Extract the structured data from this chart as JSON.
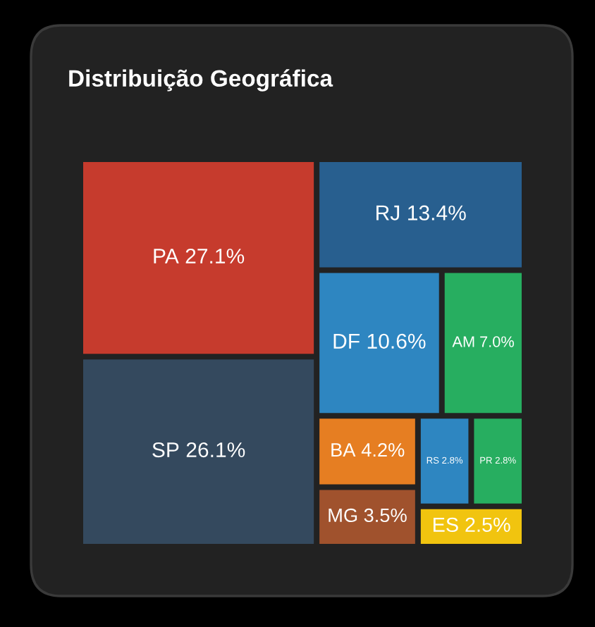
{
  "chart_data": {
    "type": "other",
    "title": "Distribuição Geográfica",
    "categories": [
      "PA",
      "SP",
      "RJ",
      "DF",
      "AM",
      "BA",
      "MG",
      "RS",
      "PR",
      "ES"
    ],
    "values": [
      27.1,
      26.1,
      13.4,
      10.6,
      7.0,
      4.2,
      3.5,
      2.8,
      2.8,
      2.5
    ],
    "value_labels": [
      "27.1%",
      "26.1%",
      "13.4%",
      "10.6%",
      "7.0%",
      "4.2%",
      "3.5%",
      "2.8%",
      "2.8%",
      "2.5%"
    ],
    "colors": [
      "#c63b2d",
      "#34495e",
      "#285f8f",
      "#2e86c1",
      "#27ae60",
      "#e67e22",
      "#a0522d",
      "#2e86c1",
      "#27ae60",
      "#f1c40f"
    ]
  }
}
